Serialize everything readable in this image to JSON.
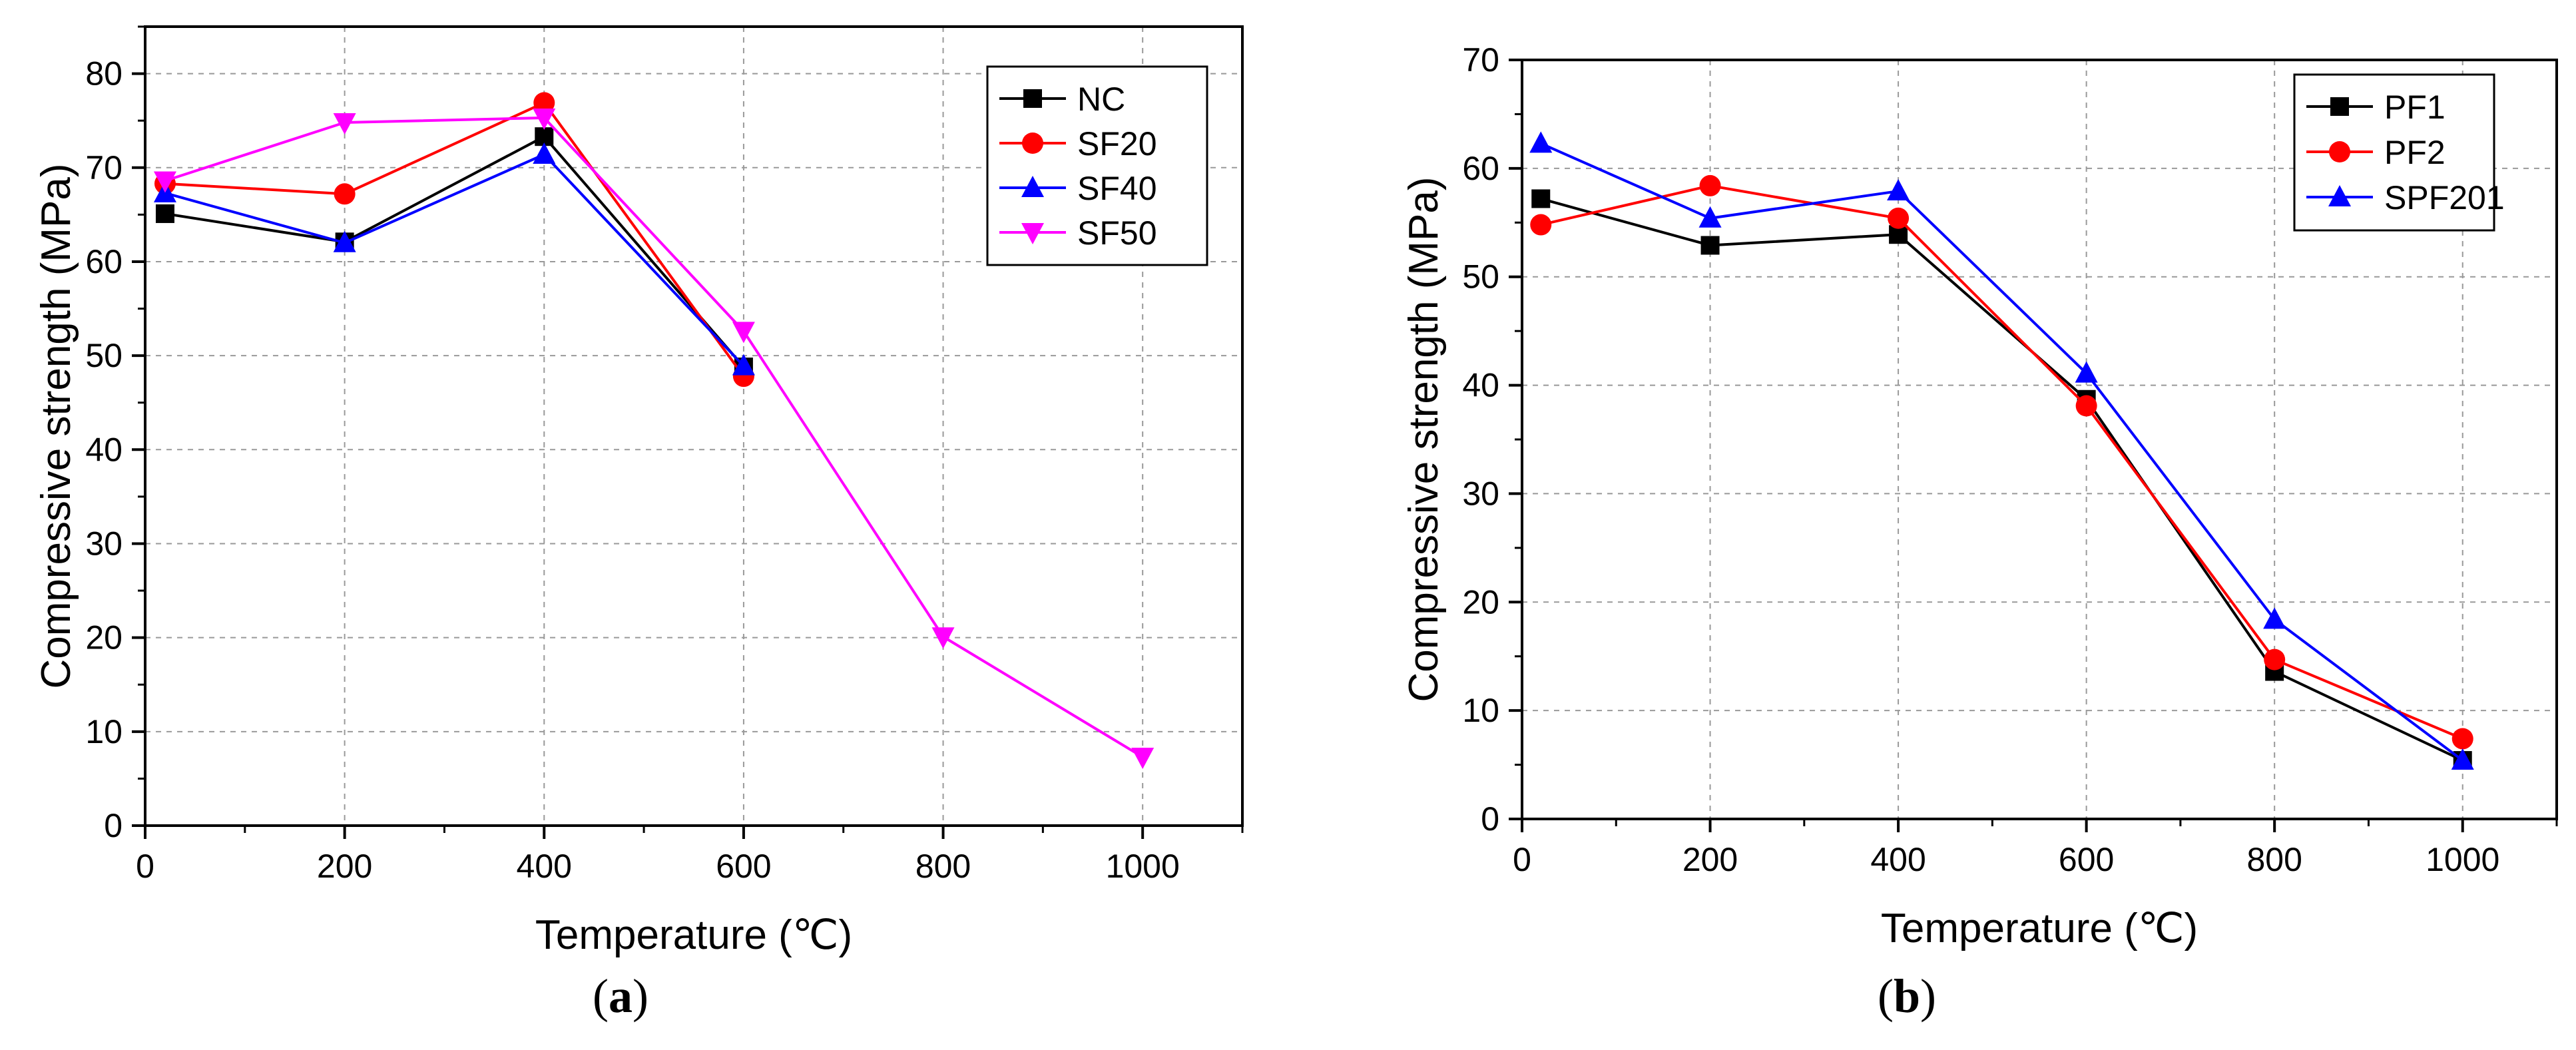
{
  "chart_data": [
    {
      "id": "a",
      "type": "line",
      "panel_label": "a",
      "xlabel": "Temperature (℃)",
      "ylabel": "Compressive strength (MPa)",
      "xlim": [
        0,
        1100
      ],
      "ylim": [
        0,
        85
      ],
      "xticks": [
        0,
        200,
        400,
        600,
        800,
        1000
      ],
      "yticks": [
        0,
        10,
        20,
        30,
        40,
        50,
        60,
        70,
        80
      ],
      "grid": true,
      "legend": "top-right",
      "series": [
        {
          "name": "NC",
          "color": "#000000",
          "marker": "square",
          "x": [
            20,
            200,
            400,
            600
          ],
          "y": [
            65.1,
            62.1,
            73.3,
            48.8
          ]
        },
        {
          "name": "SF20",
          "color": "#ff0000",
          "marker": "circle",
          "x": [
            20,
            200,
            400,
            600
          ],
          "y": [
            68.3,
            67.2,
            76.9,
            47.8
          ]
        },
        {
          "name": "SF40",
          "color": "#0000ff",
          "marker": "triangle-up",
          "x": [
            20,
            200,
            400,
            600
          ],
          "y": [
            67.3,
            62.0,
            71.4,
            48.9
          ]
        },
        {
          "name": "SF50",
          "color": "#ff00ff",
          "marker": "triangle-down",
          "x": [
            20,
            200,
            400,
            600,
            800,
            1000
          ],
          "y": [
            68.6,
            74.8,
            75.3,
            52.6,
            20.1,
            7.3
          ]
        }
      ]
    },
    {
      "id": "b",
      "type": "line",
      "panel_label": "b",
      "xlabel": "Temperature (℃)",
      "ylabel": "Compressive strength (MPa)",
      "xlim": [
        0,
        1100
      ],
      "ylim": [
        0,
        70
      ],
      "xticks": [
        0,
        200,
        400,
        600,
        800,
        1000
      ],
      "yticks": [
        0,
        10,
        20,
        30,
        40,
        50,
        60,
        70
      ],
      "grid": true,
      "legend": "top-right",
      "series": [
        {
          "name": "PF1",
          "color": "#000000",
          "marker": "square",
          "x": [
            20,
            200,
            400,
            600,
            800,
            1000
          ],
          "y": [
            57.2,
            52.9,
            53.9,
            38.7,
            13.6,
            5.4
          ]
        },
        {
          "name": "PF2",
          "color": "#ff0000",
          "marker": "circle",
          "x": [
            20,
            200,
            400,
            600,
            800,
            1000
          ],
          "y": [
            54.8,
            58.4,
            55.4,
            38.1,
            14.7,
            7.4
          ]
        },
        {
          "name": "SPF201",
          "color": "#0000ff",
          "marker": "triangle-up",
          "x": [
            20,
            200,
            400,
            600,
            800,
            1000
          ],
          "y": [
            62.3,
            55.4,
            57.9,
            41.1,
            18.4,
            5.4
          ]
        }
      ]
    }
  ]
}
